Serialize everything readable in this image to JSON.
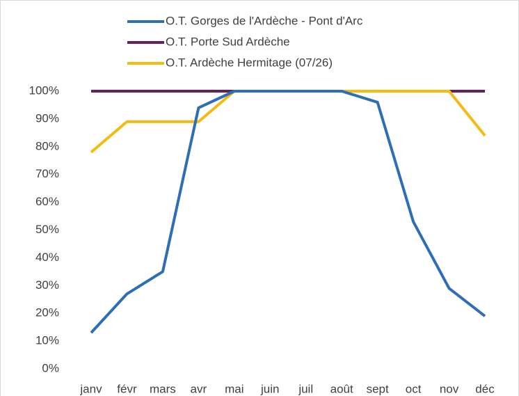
{
  "chart_data": {
    "type": "line",
    "categories": [
      "janv",
      "févr",
      "mars",
      "avr",
      "mai",
      "juin",
      "juil",
      "août",
      "sept",
      "oct",
      "nov",
      "déc"
    ],
    "series": [
      {
        "name": "O.T. Gorges de l'Ardèche - Pont d'Arc",
        "color": "#2e6eb5",
        "values": [
          13,
          27,
          35,
          94,
          100,
          100,
          100,
          100,
          96,
          53,
          29,
          19
        ]
      },
      {
        "name": "O.T. Porte Sud Ardèche",
        "color": "#6b1e5c",
        "values": [
          100,
          100,
          100,
          100,
          100,
          100,
          100,
          100,
          100,
          100,
          100,
          100
        ]
      },
      {
        "name": "O.T. Ardèche Hermitage (07/26)",
        "color": "#f6bb10",
        "values": [
          78,
          89,
          89,
          89,
          100,
          100,
          100,
          100,
          100,
          100,
          100,
          84
        ]
      }
    ],
    "ylim": [
      0,
      100
    ],
    "yticks": [
      {
        "value": 0,
        "label": "0%"
      },
      {
        "value": 10,
        "label": "10%"
      },
      {
        "value": 20,
        "label": "20%"
      },
      {
        "value": 30,
        "label": "30%"
      },
      {
        "value": 40,
        "label": "40%"
      },
      {
        "value": 50,
        "label": "50%"
      },
      {
        "value": 60,
        "label": "60%"
      },
      {
        "value": 70,
        "label": "70%"
      },
      {
        "value": 80,
        "label": "80%"
      },
      {
        "value": 90,
        "label": "90%"
      },
      {
        "value": 100,
        "label": "100%"
      }
    ],
    "grid": false,
    "legend": "top"
  }
}
